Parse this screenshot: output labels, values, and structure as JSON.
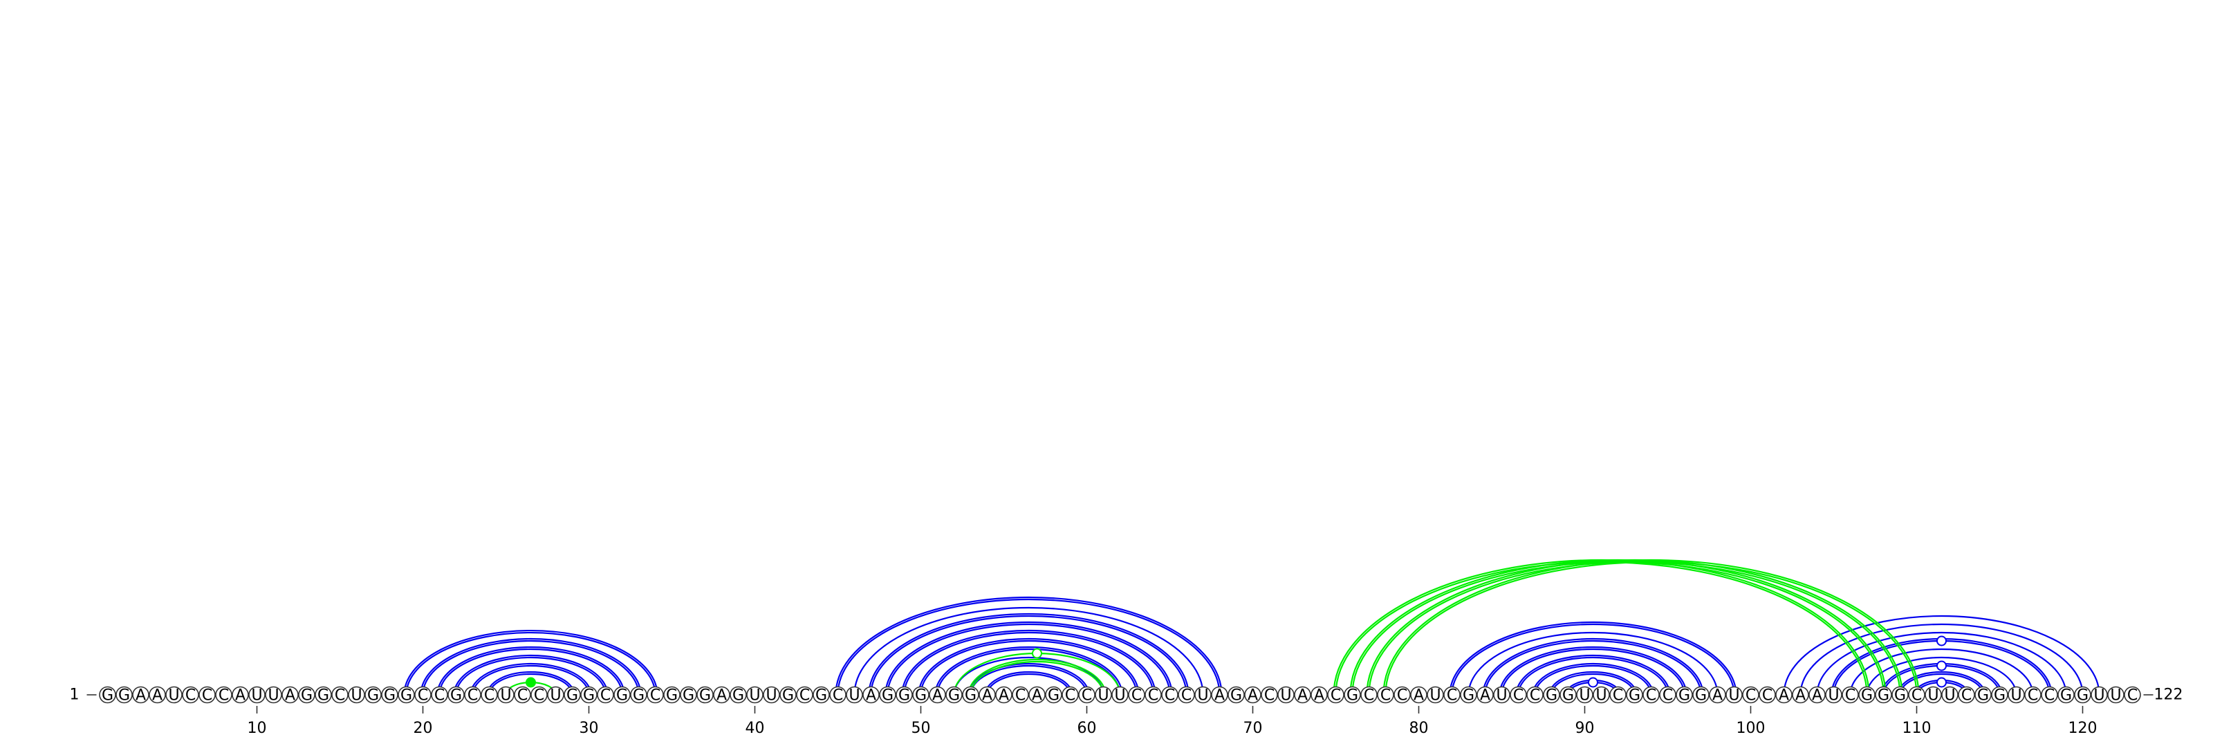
{
  "sequence": "GGAAUCCCAUUAGGCUGGGCCGCCUCCUGGCGGCGGGAGUUGCGCUAGGGAGGAACAGCCUUCCCCUAGACUAACGCCCAUCGAUCCGGUUCGCCGGAUCCAAAUCGGGCUUCGGUCCGGUUC",
  "start_label": "1",
  "end_label": "122",
  "ticks": [
    10,
    20,
    30,
    40,
    50,
    60,
    70,
    80,
    90,
    100,
    110,
    120
  ],
  "colors": {
    "primary": "#0000ee",
    "secondary": "#00ee00"
  },
  "blue_arcs": [
    [
      19,
      34
    ],
    [
      19,
      34
    ],
    [
      20,
      33
    ],
    [
      20,
      33
    ],
    [
      21,
      32
    ],
    [
      21,
      32
    ],
    [
      22,
      31
    ],
    [
      22,
      31
    ],
    [
      23,
      30
    ],
    [
      23,
      30
    ],
    [
      24,
      29
    ],
    [
      24,
      29
    ],
    [
      45,
      68
    ],
    [
      45,
      68
    ],
    [
      46,
      67
    ],
    [
      47,
      66
    ],
    [
      47,
      66
    ],
    [
      48,
      65
    ],
    [
      48,
      65
    ],
    [
      49,
      64
    ],
    [
      49,
      64
    ],
    [
      50,
      63
    ],
    [
      50,
      63
    ],
    [
      51,
      62
    ],
    [
      51,
      62
    ],
    [
      52,
      61
    ],
    [
      53,
      60
    ],
    [
      53,
      60
    ],
    [
      54,
      59
    ],
    [
      54,
      59
    ],
    [
      82,
      99
    ],
    [
      82,
      99
    ],
    [
      83,
      98
    ],
    [
      84,
      97
    ],
    [
      84,
      97
    ],
    [
      85,
      96
    ],
    [
      85,
      96
    ],
    [
      86,
      95
    ],
    [
      86,
      95
    ],
    [
      87,
      94
    ],
    [
      87,
      94
    ],
    [
      88,
      93
    ],
    [
      88,
      93
    ],
    [
      89,
      92
    ],
    [
      89,
      92
    ],
    [
      102,
      121
    ],
    [
      103,
      120
    ],
    [
      104,
      119
    ],
    [
      105,
      118
    ],
    [
      105,
      118
    ],
    [
      106,
      117
    ],
    [
      107,
      116
    ],
    [
      108,
      115
    ],
    [
      108,
      115
    ],
    [
      109,
      114
    ],
    [
      109,
      114
    ],
    [
      110,
      113
    ],
    [
      110,
      113
    ]
  ],
  "green_arcs": [
    [
      25,
      28
    ],
    [
      52,
      62
    ],
    [
      53,
      61
    ],
    [
      53,
      61
    ],
    [
      75,
      107
    ],
    [
      75,
      107
    ],
    [
      76,
      108
    ],
    [
      76,
      108
    ],
    [
      77,
      109
    ],
    [
      77,
      109
    ],
    [
      78,
      110
    ],
    [
      78,
      110
    ]
  ],
  "apex_markers": [
    {
      "from": 25,
      "to": 28,
      "color": "green",
      "filled": true
    },
    {
      "from": 52,
      "to": 62,
      "color": "green",
      "filled": false
    },
    {
      "from": 89,
      "to": 92,
      "color": "blue",
      "filled": false
    },
    {
      "from": 110,
      "to": 113,
      "color": "blue",
      "filled": false
    },
    {
      "from": 108,
      "to": 115,
      "color": "blue",
      "filled": false
    },
    {
      "from": 105,
      "to": 118,
      "color": "blue",
      "filled": false
    }
  ]
}
